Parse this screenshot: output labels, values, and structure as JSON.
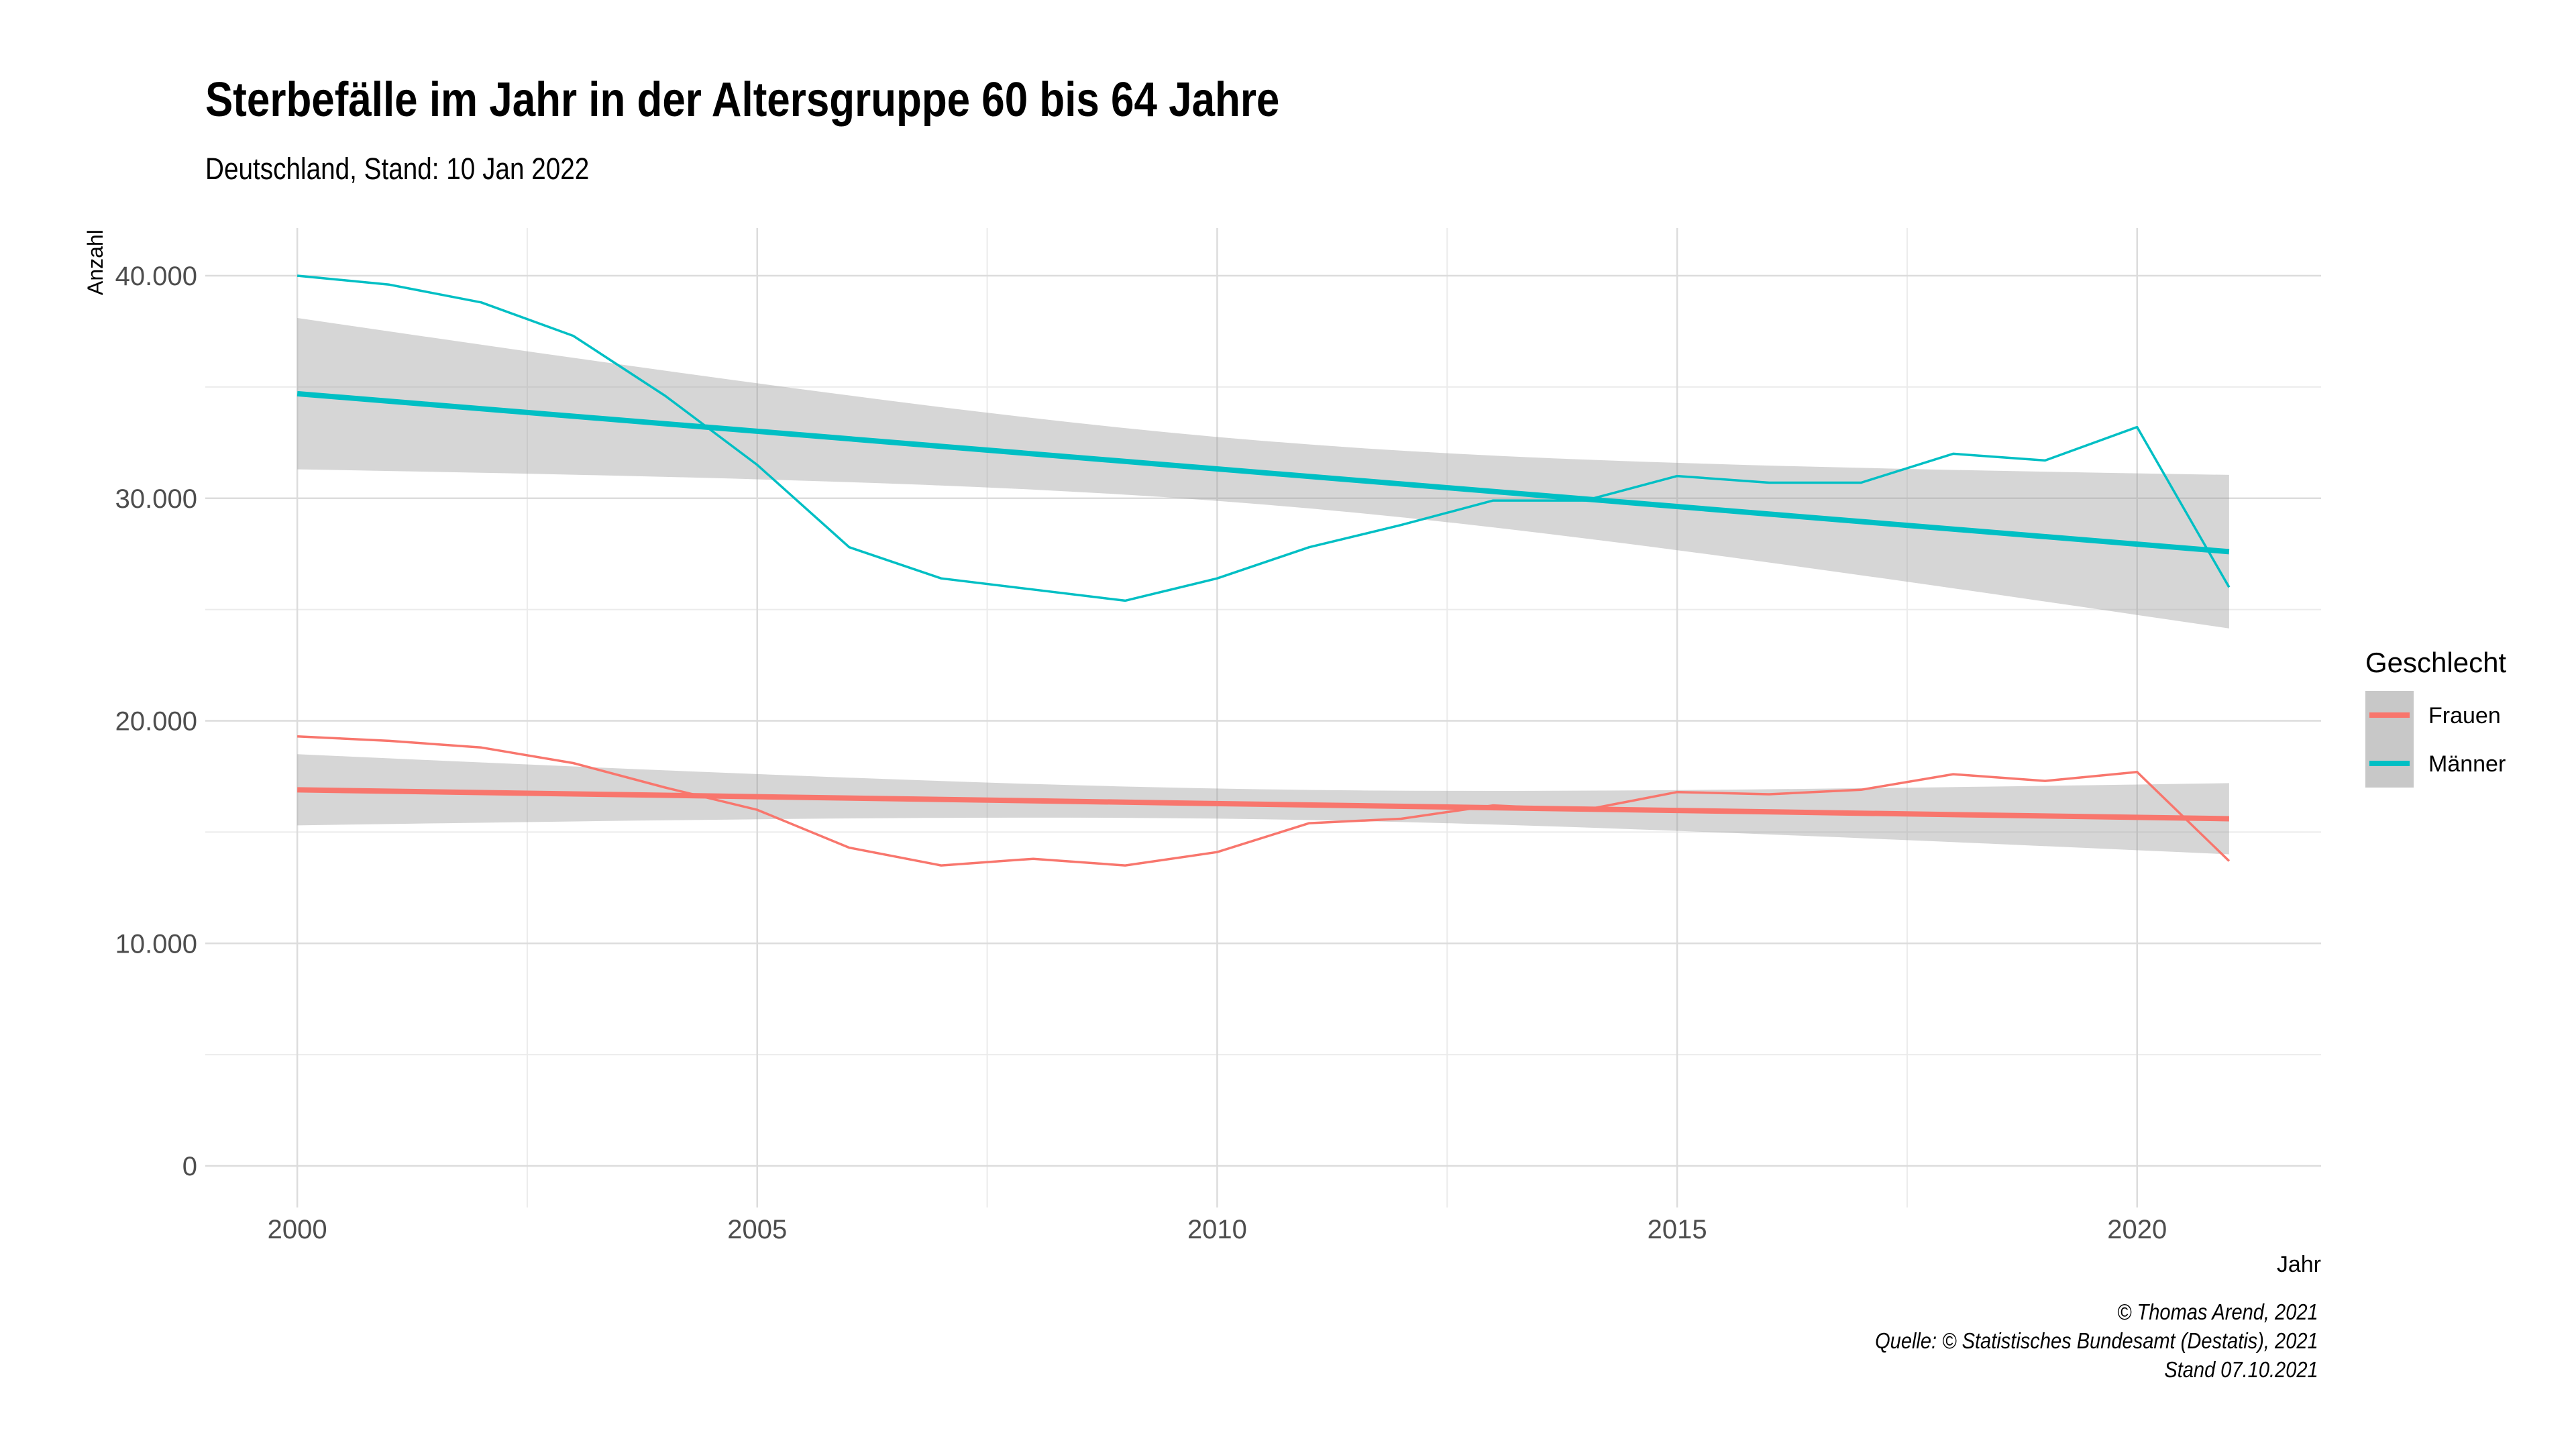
{
  "chart_data": {
    "type": "line",
    "title": "Sterbefälle im Jahr in der Altersgruppe 60 bis 64 Jahre",
    "subtitle": "Deutschland, Stand: 10 Jan 2022",
    "xlabel": "Jahr",
    "ylabel": "Anzahl",
    "xlim": [
      1999,
      2022
    ],
    "ylim": [
      0,
      40000
    ],
    "x_ticks": [
      2000,
      2005,
      2010,
      2015,
      2020
    ],
    "y_ticks": [
      0,
      10000,
      20000,
      30000,
      40000
    ],
    "y_tick_labels": [
      "0",
      "10.000",
      "20.000",
      "30.000",
      "40.000"
    ],
    "grid": true,
    "legend": {
      "title": "Geschlecht",
      "position": "right"
    },
    "x": [
      2000,
      2001,
      2002,
      2003,
      2004,
      2005,
      2006,
      2007,
      2008,
      2009,
      2010,
      2011,
      2012,
      2013,
      2014,
      2015,
      2016,
      2017,
      2018,
      2019,
      2020,
      2021
    ],
    "series": [
      {
        "name": "Frauen",
        "color": "#F8766D",
        "values": [
          19300,
          19100,
          18800,
          18100,
          17000,
          16000,
          14300,
          13500,
          13800,
          13500,
          14100,
          15400,
          15600,
          16200,
          16000,
          16800,
          16700,
          16900,
          17600,
          17300,
          17700,
          13700
        ],
        "trend": {
          "start": 16900,
          "end": 15600
        },
        "band": {
          "upper_start": 18500,
          "upper_end": 17200,
          "lower_start": 15300,
          "lower_end": 14000
        }
      },
      {
        "name": "Männer",
        "color": "#00BFC4",
        "values": [
          40000,
          39600,
          38800,
          37300,
          34600,
          31500,
          27800,
          26400,
          25900,
          25400,
          26400,
          27800,
          28800,
          29900,
          29900,
          31000,
          30700,
          30700,
          32000,
          31700,
          33200,
          26000
        ],
        "trend": {
          "start": 34700,
          "end": 27600
        },
        "band": {
          "upper_start": 38100,
          "upper_end": 31100,
          "lower_start": 31300,
          "lower_end": 24200
        }
      }
    ],
    "caption": [
      "© Thomas Arend, 2021",
      "Quelle: © Statistisches Bundesamt (Destatis), 2021",
      "Stand 07.10.2021"
    ]
  }
}
